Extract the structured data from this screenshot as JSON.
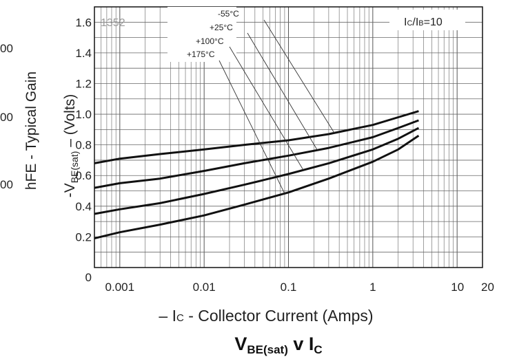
{
  "chart_data": {
    "type": "line",
    "title_main": "V",
    "title_sub1": "BE(sat)",
    "title_mid": " v I",
    "title_sub2": "C",
    "annotation": "IC/IB=10",
    "annotation_parts": {
      "a": "I",
      "b": "C",
      "c": "/I",
      "d": "B",
      "e": "=10"
    },
    "watermark": "1352",
    "ylabel_prefix": "-V",
    "ylabel_sub": "BE(sat)",
    "ylabel_suffix": " – (Volts)",
    "xlabel_prefix": "– I",
    "xlabel_sub": "C",
    "xlabel_suffix": " - Collector Current (Amps)",
    "x_scale": "log",
    "xlim": [
      0.0005,
      20
    ],
    "ylim": [
      0,
      1.7
    ],
    "x_ticks": [
      {
        "v": 0.001,
        "label": "0.001"
      },
      {
        "v": 0.01,
        "label": "0.01"
      },
      {
        "v": 0.1,
        "label": "0.1"
      },
      {
        "v": 1,
        "label": "1"
      },
      {
        "v": 10,
        "label": "10"
      },
      {
        "v": 20,
        "label": "20"
      }
    ],
    "y_ticks": [
      {
        "v": 0,
        "label": "0"
      },
      {
        "v": 0.2,
        "label": "0.2"
      },
      {
        "v": 0.4,
        "label": "0.4"
      },
      {
        "v": 0.6,
        "label": "0.6"
      },
      {
        "v": 0.8,
        "label": "0.8"
      },
      {
        "v": 1.0,
        "label": "1.0"
      },
      {
        "v": 1.2,
        "label": "1.2"
      },
      {
        "v": 1.4,
        "label": "1.4"
      },
      {
        "v": 1.6,
        "label": "1.6"
      }
    ],
    "grid": true,
    "series": [
      {
        "name": "-55°C",
        "x": [
          0.0005,
          0.001,
          0.003,
          0.01,
          0.03,
          0.1,
          0.3,
          1,
          2,
          3.5
        ],
        "y": [
          0.68,
          0.71,
          0.74,
          0.77,
          0.8,
          0.83,
          0.87,
          0.93,
          0.98,
          1.02
        ]
      },
      {
        "name": "+25°C",
        "x": [
          0.0005,
          0.001,
          0.003,
          0.01,
          0.03,
          0.1,
          0.3,
          1,
          2,
          3.5
        ],
        "y": [
          0.52,
          0.55,
          0.58,
          0.63,
          0.68,
          0.73,
          0.78,
          0.85,
          0.91,
          0.96
        ]
      },
      {
        "name": "+100°C",
        "x": [
          0.0005,
          0.001,
          0.003,
          0.01,
          0.03,
          0.1,
          0.3,
          1,
          2,
          3.5
        ],
        "y": [
          0.35,
          0.38,
          0.42,
          0.48,
          0.54,
          0.61,
          0.68,
          0.77,
          0.84,
          0.91
        ]
      },
      {
        "name": "+175°C",
        "x": [
          0.0005,
          0.001,
          0.003,
          0.01,
          0.03,
          0.1,
          0.3,
          1,
          2,
          3.5
        ],
        "y": [
          0.19,
          0.23,
          0.28,
          0.34,
          0.41,
          0.49,
          0.58,
          0.69,
          0.77,
          0.86
        ]
      }
    ],
    "curve_labels": [
      {
        "text": "-55°C",
        "anchor_x": 0.35
      },
      {
        "text": "+25°C",
        "anchor_x": 0.22
      },
      {
        "text": "+100°C",
        "anchor_x": 0.15
      },
      {
        "text": "+175°C",
        "anchor_x": 0.09
      }
    ]
  },
  "background_chart": {
    "ylabel": "hFE - Typical Gain",
    "tick_fragments": [
      "00",
      "00",
      "00"
    ]
  }
}
